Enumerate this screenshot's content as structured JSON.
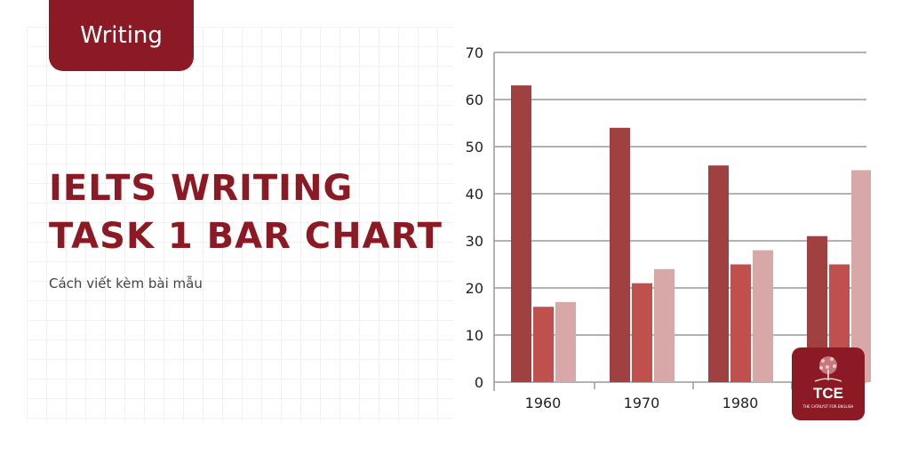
{
  "tag": "Writing",
  "title_lines": [
    "IELTS WRITING",
    "TASK 1 BAR CHART"
  ],
  "subtitle": "Cách viết kèm bài mẫu",
  "logo": {
    "text": "TCE",
    "tagline": "THE CATALYST FOR ENGLISH",
    "color": "#8b1a24"
  },
  "colors": {
    "brand": "#8b1a24"
  },
  "chart_data": {
    "type": "bar",
    "categories": [
      "1960",
      "1970",
      "1980",
      ""
    ],
    "series": [
      {
        "values": [
          63,
          54,
          46,
          31
        ],
        "color": "#a04040"
      },
      {
        "values": [
          16,
          21,
          25,
          25
        ],
        "color": "#c0504d"
      },
      {
        "values": [
          17,
          24,
          28,
          45
        ],
        "color": "#d8a7a8"
      }
    ],
    "yticks": [
      "0",
      "10",
      "20",
      "30",
      "40",
      "50",
      "60",
      "70"
    ],
    "ylim": [
      0,
      70
    ],
    "grid": true
  }
}
